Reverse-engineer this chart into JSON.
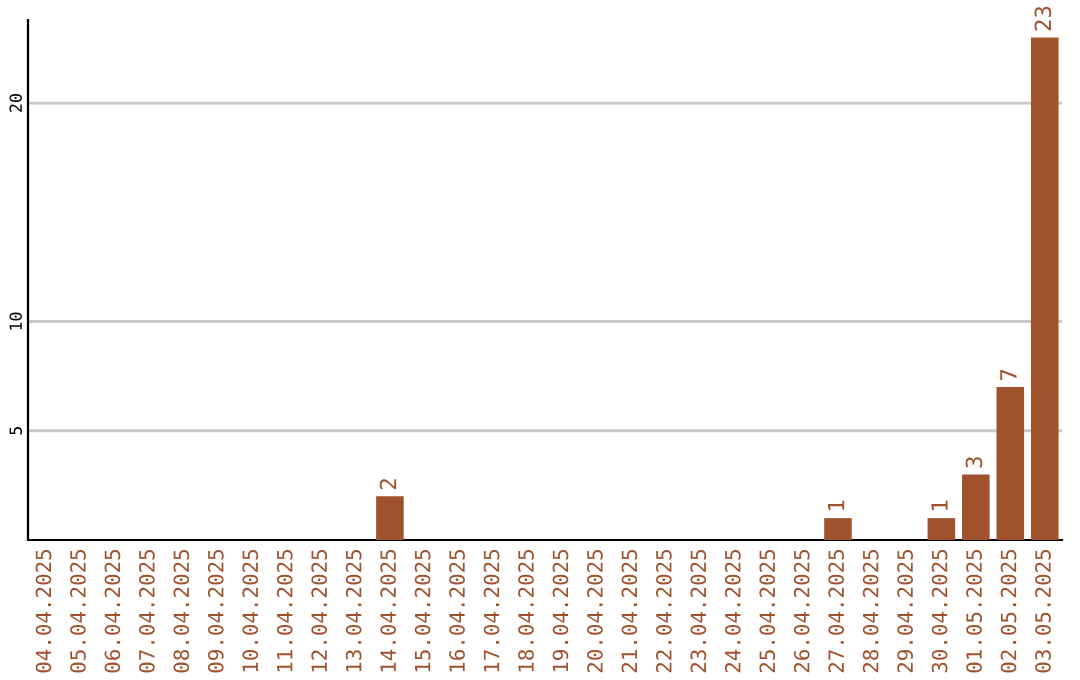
{
  "chart_data": {
    "type": "bar",
    "categories": [
      "04.04.2025",
      "05.04.2025",
      "06.04.2025",
      "07.04.2025",
      "08.04.2025",
      "09.04.2025",
      "10.04.2025",
      "11.04.2025",
      "12.04.2025",
      "13.04.2025",
      "14.04.2025",
      "15.04.2025",
      "16.04.2025",
      "17.04.2025",
      "18.04.2025",
      "19.04.2025",
      "20.04.2025",
      "21.04.2025",
      "22.04.2025",
      "23.04.2025",
      "24.04.2025",
      "25.04.2025",
      "26.04.2025",
      "27.04.2025",
      "28.04.2025",
      "29.04.2025",
      "30.04.2025",
      "01.05.2025",
      "02.05.2025",
      "03.05.2025"
    ],
    "values": [
      0,
      0,
      0,
      0,
      0,
      0,
      0,
      0,
      0,
      0,
      2,
      0,
      0,
      0,
      0,
      0,
      0,
      0,
      0,
      0,
      0,
      0,
      0,
      1,
      0,
      0,
      1,
      3,
      7,
      23
    ],
    "value_labels": [
      null,
      null,
      null,
      null,
      null,
      null,
      null,
      null,
      null,
      null,
      "2",
      null,
      null,
      null,
      null,
      null,
      null,
      null,
      null,
      null,
      null,
      null,
      null,
      "1",
      null,
      null,
      "1",
      "3",
      "7",
      "23"
    ],
    "color": "#a0522d",
    "ylim": [
      0,
      23.8
    ],
    "yticks": [
      5,
      10,
      20
    ],
    "grid": "y"
  }
}
